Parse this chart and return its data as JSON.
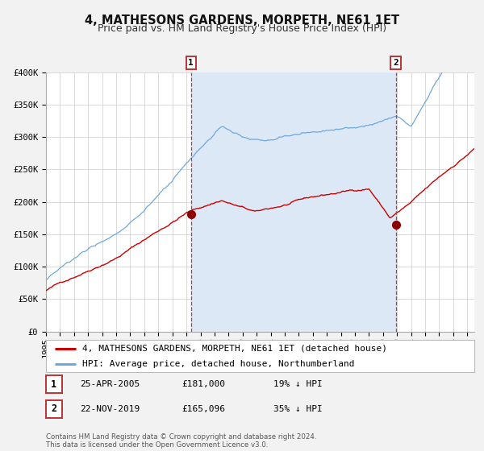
{
  "title": "4, MATHESONS GARDENS, MORPETH, NE61 1ET",
  "subtitle": "Price paid vs. HM Land Registry's House Price Index (HPI)",
  "ylim": [
    0,
    400000
  ],
  "yticks": [
    0,
    50000,
    100000,
    150000,
    200000,
    250000,
    300000,
    350000,
    400000
  ],
  "ytick_labels": [
    "£0",
    "£50K",
    "£100K",
    "£150K",
    "£200K",
    "£250K",
    "£300K",
    "£350K",
    "£400K"
  ],
  "xlim_start": 1995.0,
  "xlim_end": 2025.5,
  "xticks": [
    1995,
    1996,
    1997,
    1998,
    1999,
    2000,
    2001,
    2002,
    2003,
    2004,
    2005,
    2006,
    2007,
    2008,
    2009,
    2010,
    2011,
    2012,
    2013,
    2014,
    2015,
    2016,
    2017,
    2018,
    2019,
    2020,
    2021,
    2022,
    2023,
    2024,
    2025
  ],
  "hpi_color": "#6fa8dc",
  "hpi_fill_color": "#dce8f5",
  "price_color": "#cc0000",
  "marker_color": "#8b0000",
  "vline_color": "#cc3333",
  "background_color": "#f2f2f2",
  "plot_bg_color": "#ffffff",
  "grid_color": "#cccccc",
  "transaction1_date": 2005.32,
  "transaction1_price": 181000,
  "transaction2_date": 2019.9,
  "transaction2_price": 165096,
  "legend_entries": [
    "4, MATHESONS GARDENS, MORPETH, NE61 1ET (detached house)",
    "HPI: Average price, detached house, Northumberland"
  ],
  "table_rows": [
    {
      "num": "1",
      "date": "25-APR-2005",
      "price": "£181,000",
      "pct": "19% ↓ HPI"
    },
    {
      "num": "2",
      "date": "22-NOV-2019",
      "price": "£165,096",
      "pct": "35% ↓ HPI"
    }
  ],
  "footer": "Contains HM Land Registry data © Crown copyright and database right 2024.\nThis data is licensed under the Open Government Licence v3.0.",
  "title_fontsize": 10.5,
  "subtitle_fontsize": 9,
  "tick_fontsize": 7.5,
  "legend_fontsize": 8
}
